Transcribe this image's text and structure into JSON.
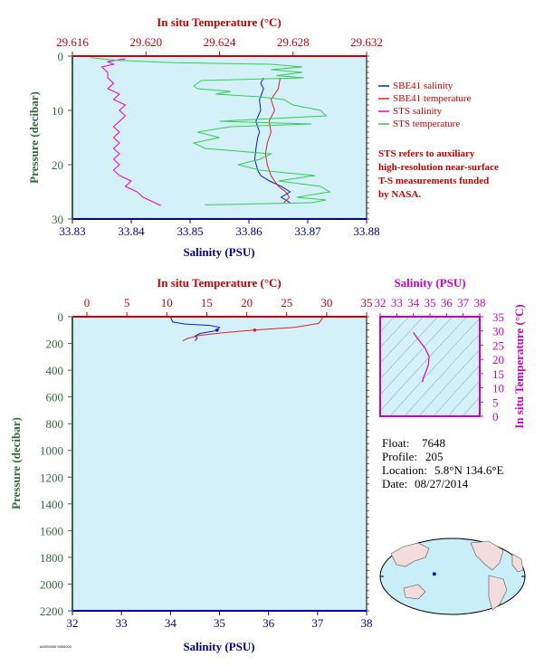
{
  "chart_data": [
    {
      "type": "line",
      "id": "upper",
      "top_axis_label": "In situ Temperature (°C)",
      "bottom_axis_label": "Salinity (PSU)",
      "left_axis_label": "Pressure (decibar)",
      "temp_ticks": [
        "29.616",
        "29.620",
        "29.624",
        "29.628",
        "29.632"
      ],
      "temp_range": [
        29.616,
        29.632
      ],
      "sal_ticks": [
        "33.83",
        "33.84",
        "33.85",
        "33.86",
        "33.87",
        "33.88"
      ],
      "sal_range": [
        33.83,
        33.88
      ],
      "pres_ticks": [
        "0",
        "10",
        "20",
        "30"
      ],
      "pres_range": [
        0,
        30
      ],
      "background": "#d4f0f8",
      "series": [
        {
          "name": "SBE41 salinity",
          "color": "#0022cc",
          "axis": "salinity",
          "points": [
            [
              33.8625,
              4
            ],
            [
              33.862,
              5
            ],
            [
              33.8625,
              6
            ],
            [
              33.8618,
              8
            ],
            [
              33.862,
              10
            ],
            [
              33.8612,
              12
            ],
            [
              33.8618,
              14
            ],
            [
              33.8615,
              15
            ],
            [
              33.8612,
              17
            ],
            [
              33.861,
              19
            ],
            [
              33.8615,
              21
            ],
            [
              33.862,
              22
            ],
            [
              33.8635,
              23
            ],
            [
              33.8655,
              24
            ],
            [
              33.867,
              25
            ],
            [
              33.8655,
              26
            ],
            [
              33.867,
              27
            ]
          ]
        },
        {
          "name": "SBE41 temperature",
          "color": "#dd2222",
          "axis": "temperature",
          "points": [
            [
              29.6273,
              4
            ],
            [
              29.6272,
              6
            ],
            [
              29.6268,
              8
            ],
            [
              29.627,
              10
            ],
            [
              29.6267,
              12
            ],
            [
              29.6268,
              14
            ],
            [
              29.6266,
              16
            ],
            [
              29.6265,
              18
            ],
            [
              29.6266,
              20
            ],
            [
              29.6268,
              22
            ],
            [
              29.6272,
              24
            ],
            [
              29.6276,
              25
            ],
            [
              29.6278,
              26
            ],
            [
              29.6275,
              27
            ]
          ]
        },
        {
          "name": "STS salinity",
          "color": "#dd00dd",
          "axis": "salinity",
          "points": [
            [
              33.839,
              0.5
            ],
            [
              33.836,
              1.0
            ],
            [
              33.837,
              1.5
            ],
            [
              33.835,
              2.0
            ],
            [
              33.836,
              3
            ],
            [
              33.836,
              4
            ],
            [
              33.837,
              5
            ],
            [
              33.836,
              6
            ],
            [
              33.838,
              7
            ],
            [
              33.837,
              8
            ],
            [
              33.839,
              9
            ],
            [
              33.838,
              10
            ],
            [
              33.839,
              11
            ],
            [
              33.838,
              12
            ],
            [
              33.837,
              13
            ],
            [
              33.838,
              14
            ],
            [
              33.837,
              15
            ],
            [
              33.838,
              16
            ],
            [
              33.837,
              17
            ],
            [
              33.838,
              18
            ],
            [
              33.837,
              19
            ],
            [
              33.838,
              20
            ],
            [
              33.837,
              21
            ],
            [
              33.838,
              22
            ],
            [
              33.84,
              23
            ],
            [
              33.839,
              24
            ],
            [
              33.841,
              25
            ],
            [
              33.842,
              26
            ],
            [
              33.845,
              27.5
            ]
          ]
        },
        {
          "name": "STS temperature",
          "color": "#33cc55",
          "axis": "temperature",
          "points": [
            [
              29.617,
              0.3
            ],
            [
              29.6185,
              0.8
            ],
            [
              29.6215,
              1.2
            ],
            [
              29.6268,
              1.5
            ],
            [
              29.6285,
              2.0
            ],
            [
              29.6268,
              2.5
            ],
            [
              29.6285,
              3.0
            ],
            [
              29.6271,
              3.6
            ],
            [
              29.6286,
              4.0
            ],
            [
              29.623,
              4.5
            ],
            [
              29.6226,
              5.5
            ],
            [
              29.6228,
              6.0
            ],
            [
              29.6246,
              6.5
            ],
            [
              29.6238,
              7.0
            ],
            [
              29.6262,
              7.5
            ],
            [
              29.6275,
              8
            ],
            [
              29.628,
              9
            ],
            [
              29.6295,
              10
            ],
            [
              29.6298,
              11
            ],
            [
              29.624,
              12
            ],
            [
              29.629,
              12.5
            ],
            [
              29.6246,
              13
            ],
            [
              29.6228,
              14
            ],
            [
              29.624,
              15
            ],
            [
              29.6226,
              16
            ],
            [
              29.6232,
              17
            ],
            [
              29.6268,
              18
            ],
            [
              29.6262,
              19
            ],
            [
              29.625,
              20
            ],
            [
              29.6262,
              21
            ],
            [
              29.6276,
              21.5
            ],
            [
              29.6292,
              22
            ],
            [
              29.6272,
              23
            ],
            [
              29.6295,
              24
            ],
            [
              29.63,
              25
            ],
            [
              29.6282,
              26
            ],
            [
              29.6298,
              26.5
            ],
            [
              29.629,
              27
            ],
            [
              29.6232,
              27.4
            ]
          ]
        }
      ]
    },
    {
      "type": "line",
      "id": "lower",
      "top_axis_label": "In situ Temperature (°C)",
      "bottom_axis_label": "Salinity (PSU)",
      "left_axis_label": "Pressure (decibar)",
      "temp_ticks": [
        "0",
        "5",
        "10",
        "15",
        "20",
        "25",
        "30",
        "35"
      ],
      "temp_range": [
        0,
        35
      ],
      "sal_ticks": [
        "32",
        "33",
        "34",
        "35",
        "36",
        "37",
        "38"
      ],
      "sal_range": [
        32,
        38
      ],
      "pres_ticks": [
        "0",
        "200",
        "400",
        "600",
        "800",
        "1000",
        "1200",
        "1400",
        "1600",
        "1800",
        "2000",
        "2200"
      ],
      "pres_range": [
        0,
        2200
      ],
      "series": [
        {
          "axis": "salinity",
          "color": "#0022cc",
          "points": [
            [
              34.0,
              0
            ],
            [
              34.02,
              20
            ],
            [
              34.05,
              40
            ],
            [
              34.3,
              55
            ],
            [
              34.8,
              65
            ],
            [
              35.0,
              80
            ],
            [
              34.95,
              100
            ],
            [
              34.85,
              110
            ],
            [
              34.6,
              125
            ],
            [
              34.5,
              145
            ],
            [
              34.55,
              160
            ],
            [
              34.5,
              180
            ]
          ]
        },
        {
          "axis": "temperature",
          "color": "#dd2222",
          "points": [
            [
              29.5,
              0
            ],
            [
              29.4,
              20
            ],
            [
              29.0,
              50
            ],
            [
              26.0,
              80
            ],
            [
              21.0,
              100
            ],
            [
              17.0,
              120
            ],
            [
              14.0,
              140
            ],
            [
              12.5,
              165
            ],
            [
              12.0,
              180
            ]
          ]
        }
      ]
    },
    {
      "type": "scatter",
      "id": "ts-diagram",
      "top_axis_label": "Salinity (PSU)",
      "right_axis_label": "In situ Temperature (°C)",
      "sal_ticks": [
        "32",
        "33",
        "34",
        "35",
        "36",
        "37",
        "38"
      ],
      "sal_range": [
        32,
        38
      ],
      "temp_ticks": [
        "0",
        "5",
        "10",
        "15",
        "20",
        "25",
        "30",
        "35"
      ],
      "temp_range": [
        0,
        35
      ],
      "series": [
        {
          "color": "#cc00cc",
          "points": [
            [
              34.0,
              29.5
            ],
            [
              34.05,
              29
            ],
            [
              34.3,
              27
            ],
            [
              34.7,
              24
            ],
            [
              34.95,
              21
            ],
            [
              34.9,
              18
            ],
            [
              34.75,
              15.5
            ],
            [
              34.6,
              13.5
            ],
            [
              34.55,
              12.0
            ]
          ]
        }
      ]
    }
  ],
  "legend": {
    "items": [
      {
        "label": "SBE41 salinity",
        "color": "#0022cc"
      },
      {
        "label": "SBE41 temperature",
        "color": "#dd2222"
      },
      {
        "label": "STS salinity",
        "color": "#dd00dd"
      },
      {
        "label": "STS temperature",
        "color": "#33cc55"
      }
    ]
  },
  "note": {
    "lines": [
      "STS refers to auxiliary",
      "high-resolution near-surface",
      "T-S measurements funded",
      "by NASA."
    ]
  },
  "info": {
    "float_label": "Float:",
    "float_value": "7648",
    "profile_label": "Profile:",
    "profile_value": "205",
    "location_label": "Location:",
    "location_value": "5.8°N  134.6°E",
    "date_label": "Date:",
    "date_value": "08/27/2014"
  },
  "map": {
    "float_lat": 5.8,
    "float_lon": 134.6,
    "ocean_color": "#c8eef8",
    "land_color": "#f2dcdc"
  },
  "footer_code": "A0000000 0000000"
}
